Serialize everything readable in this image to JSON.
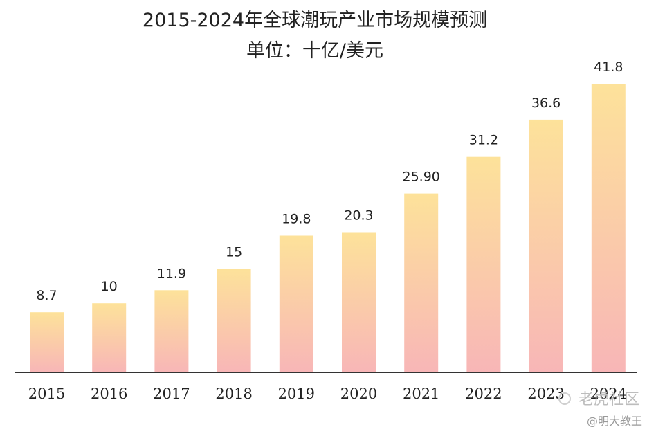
{
  "chart_data": {
    "type": "bar",
    "title": "2015-2024年全球潮玩产业市场规模预测",
    "subtitle": "单位：十亿/美元",
    "categories": [
      "2015",
      "2016",
      "2017",
      "2018",
      "2019",
      "2020",
      "2021",
      "2022",
      "2023",
      "2024"
    ],
    "values": [
      8.7,
      10,
      11.9,
      15,
      19.8,
      20.3,
      25.9,
      31.2,
      36.6,
      41.8
    ],
    "value_labels": [
      "8.7",
      "10",
      "11.9",
      "15",
      "19.8",
      "20.3",
      "25.90",
      "31.2",
      "36.6",
      "41.8"
    ],
    "xlabel": "",
    "ylabel": "",
    "ylim": [
      0,
      44
    ],
    "grid": false,
    "legend": "none",
    "colors": {
      "bar_top": "#fde29a",
      "bar_bottom": "#f8b6b7",
      "axis": "#333333"
    }
  },
  "watermark": {
    "line1": "老虎社区",
    "line2": "@明大教王"
  }
}
